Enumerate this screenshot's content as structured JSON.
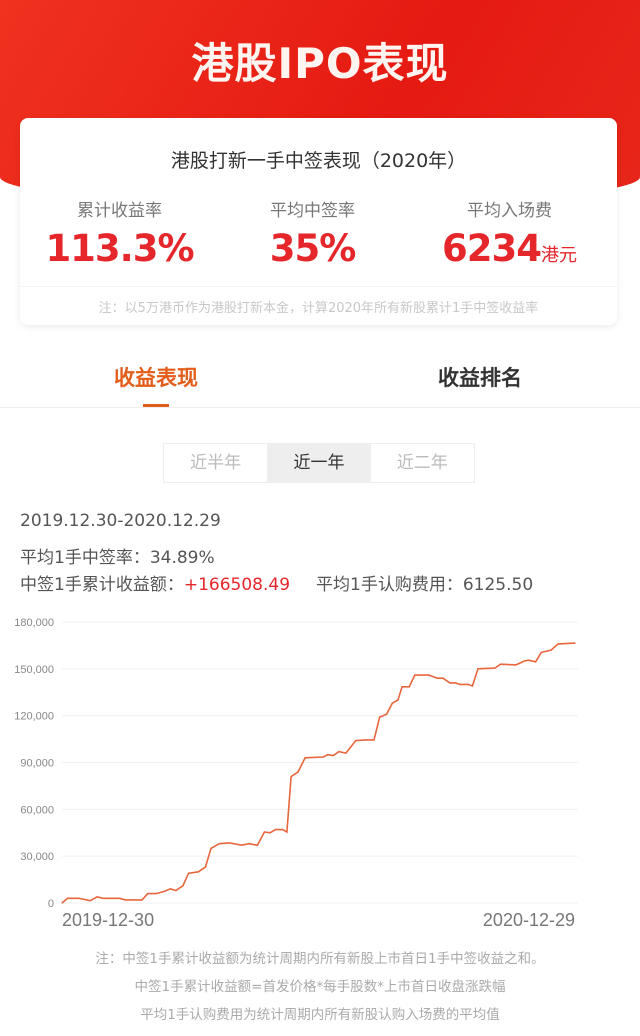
{
  "header": {
    "title": "港股IPO表现"
  },
  "summary": {
    "title": "港股打新一手中签表现（2020年）",
    "stats": [
      {
        "label": "累计收益率",
        "value": "113.3%",
        "unit": ""
      },
      {
        "label": "平均中签率",
        "value": "35%",
        "unit": ""
      },
      {
        "label": "平均入场费",
        "value": "6234",
        "unit": "港元"
      }
    ],
    "note": "注：以5万港币作为港股打新本金，计算2020年所有新股累计1手中签收益率"
  },
  "tabs": [
    {
      "label": "收益表现",
      "active": true
    },
    {
      "label": "收益排名",
      "active": false
    }
  ],
  "periods": [
    {
      "label": "近半年"
    },
    {
      "label": "近一年",
      "selected": true
    },
    {
      "label": "近二年"
    }
  ],
  "range": "2019.12.30-2020.12.29",
  "avg_rate_label": "平均1手中签率：",
  "avg_rate": "34.89%",
  "cum_label": "中签1手累计收益额：",
  "cum_value": "+166508.49",
  "avg_fee_label": "平均1手认购费用：",
  "avg_fee": "6125.50",
  "colors": {
    "accent": "#e25d1a",
    "line": "#e8663d",
    "positive": "#e5262b",
    "header": "#e51a12"
  },
  "chart_data": {
    "type": "line",
    "title": "",
    "xlabel": "",
    "ylabel": "",
    "ylim": [
      0,
      180000
    ],
    "yticks": [
      "0",
      "30,000",
      "60,000",
      "90,000",
      "120,000",
      "150,000",
      "180,000"
    ],
    "xtick_labels": [
      "2019-12-30",
      "2020-12-29"
    ],
    "grid": true,
    "series": [
      {
        "x": [
          "2019-12-30",
          "2020-01-03",
          "2020-01-11",
          "2020-01-14",
          "2020-01-19",
          "2020-01-24",
          "2020-01-28",
          "2020-02-09",
          "2020-02-13",
          "2020-02-25",
          "2020-02-29",
          "2020-03-06",
          "2020-03-12",
          "2020-03-16",
          "2020-03-20",
          "2020-03-25",
          "2020-03-29",
          "2020-04-05",
          "2020-04-10",
          "2020-04-14",
          "2020-04-20",
          "2020-04-27",
          "2020-05-06",
          "2020-05-11",
          "2020-05-17",
          "2020-05-22",
          "2020-05-26",
          "2020-05-30",
          "2020-06-04",
          "2020-06-07",
          "2020-06-10",
          "2020-06-15",
          "2020-06-20",
          "2020-07-03",
          "2020-07-06",
          "2020-07-10",
          "2020-07-14",
          "2020-07-19",
          "2020-07-26",
          "2020-08-02",
          "2020-08-08",
          "2020-08-12",
          "2020-08-17",
          "2020-08-21",
          "2020-08-25",
          "2020-08-28",
          "2020-09-02",
          "2020-09-06",
          "2020-09-16",
          "2020-09-22",
          "2020-09-26",
          "2020-10-01",
          "2020-10-05",
          "2020-10-08",
          "2020-10-14",
          "2020-10-17",
          "2020-10-21",
          "2020-11-02",
          "2020-11-06",
          "2020-11-17",
          "2020-11-23",
          "2020-11-26",
          "2020-12-01",
          "2020-12-05",
          "2020-12-12",
          "2020-12-17",
          "2020-12-29"
        ],
        "y": [
          0,
          3000,
          3000,
          2500,
          1500,
          4000,
          3000,
          3000,
          2000,
          2000,
          6000,
          6000,
          7500,
          9000,
          8000,
          11000,
          19000,
          20000,
          23000,
          35000,
          38000,
          38500,
          37000,
          38000,
          37000,
          45500,
          45000,
          47000,
          47000,
          45500,
          81000,
          84000,
          93000,
          93500,
          95000,
          94500,
          97000,
          96000,
          104000,
          104500,
          104500,
          119000,
          121000,
          128000,
          130000,
          138500,
          138500,
          146000,
          146000,
          144000,
          144000,
          141000,
          141000,
          140000,
          140000,
          139000,
          150000,
          150500,
          153000,
          152500,
          155000,
          155500,
          154500,
          160500,
          162000,
          166000,
          166508
        ]
      }
    ]
  },
  "footnotes": [
    "注：中签1手累计收益额为统计周期内所有新股上市首日1手中签收益之和。",
    "中签1手累计收益额=首发价格*每手股数*上市首日收盘涨跌幅",
    "平均1手认购费用为统计周期内所有新股认购入场费的平均值"
  ]
}
